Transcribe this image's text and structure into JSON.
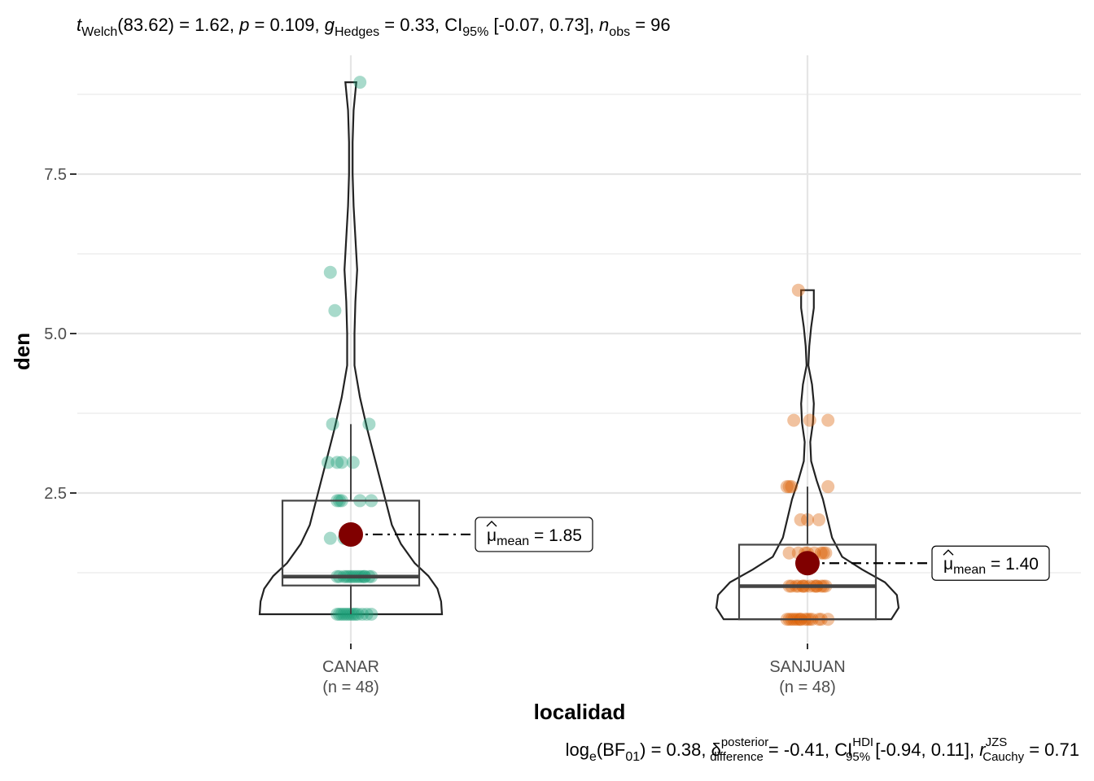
{
  "subtitle": {
    "t_symbol": "t",
    "t_sub": "Welch",
    "part1": "(83.62) = 1.62, ",
    "p_symbol": "p",
    "part2": " = 0.109, ",
    "g_symbol": "g",
    "g_sub": "Hedges",
    "part3": " = 0.33, CI",
    "ci_sub": "95%",
    "part4": " [-0.07, 0.73], ",
    "n_symbol": "n",
    "n_sub": "obs",
    "part5": " = 96"
  },
  "caption": {
    "part1": "log",
    "log_sub": "e",
    "part2": "(BF",
    "bf_sub": "01",
    "part3": ") = 0.38, δ",
    "delta_sup": "posterior",
    "delta_sub": "difference",
    "part4": " = -0.41, CI",
    "ci_sup": "HDI",
    "ci_sub": "95%",
    "part5": " [-0.94, 0.11], ",
    "r_symbol": "r",
    "r_sup": "JZS",
    "r_sub": "Cauchy",
    "part6": " = 0.71"
  },
  "chart_data": {
    "type": "violin-box-scatter",
    "xlabel": "localidad",
    "ylabel": "den",
    "ylim": [
      0.4,
      9.2
    ],
    "yticks": [
      2.5,
      5.0,
      7.5
    ],
    "ytick_labels": [
      "2.5",
      "5.0",
      "7.5"
    ],
    "grid": true,
    "groups": [
      {
        "name": "CANAR",
        "n_label": "(n = 48)",
        "color": "#1b9e77",
        "mean": 1.85,
        "mean_label_mu": "μ",
        "mean_label_sub": "mean",
        "mean_label_value": " = 1.85",
        "box": {
          "q1": 1.05,
          "median": 1.19,
          "q3": 2.38,
          "whisker_low": 0.6,
          "whisker_high": 3.58
        },
        "violin": [
          [
            0.6,
            1.0
          ],
          [
            0.8,
            0.99
          ],
          [
            1.0,
            0.95
          ],
          [
            1.2,
            0.85
          ],
          [
            1.4,
            0.7
          ],
          [
            1.7,
            0.55
          ],
          [
            2.0,
            0.45
          ],
          [
            2.5,
            0.36
          ],
          [
            3.0,
            0.27
          ],
          [
            3.5,
            0.18
          ],
          [
            4.0,
            0.1
          ],
          [
            4.5,
            0.04
          ],
          [
            5.0,
            0.04
          ],
          [
            5.5,
            0.05
          ],
          [
            6.0,
            0.07
          ],
          [
            6.5,
            0.05
          ],
          [
            7.0,
            0.03
          ],
          [
            7.5,
            0.02
          ],
          [
            8.0,
            0.02
          ],
          [
            8.5,
            0.03
          ],
          [
            8.94,
            0.06
          ]
        ],
        "points": [
          [
            -0.06,
            0.6
          ],
          [
            -0.05,
            0.6
          ],
          [
            -0.03,
            0.6
          ],
          [
            -0.02,
            0.6
          ],
          [
            -0.01,
            0.6
          ],
          [
            0.0,
            0.6
          ],
          [
            0.02,
            0.6
          ],
          [
            0.03,
            0.6
          ],
          [
            0.05,
            0.6
          ],
          [
            0.07,
            0.6
          ],
          [
            0.09,
            0.6
          ],
          [
            -0.06,
            1.19
          ],
          [
            -0.05,
            1.19
          ],
          [
            -0.03,
            1.19
          ],
          [
            -0.02,
            1.19
          ],
          [
            -0.01,
            1.19
          ],
          [
            0.0,
            1.19
          ],
          [
            0.01,
            1.19
          ],
          [
            0.02,
            1.19
          ],
          [
            0.04,
            1.19
          ],
          [
            0.05,
            1.19
          ],
          [
            0.06,
            1.19
          ],
          [
            0.08,
            1.19
          ],
          [
            0.09,
            1.19
          ],
          [
            -0.03,
            1.79
          ],
          [
            -0.02,
            1.79
          ],
          [
            -0.01,
            1.79
          ],
          [
            0.0,
            1.79
          ],
          [
            -0.09,
            1.79
          ],
          [
            -0.06,
            2.38
          ],
          [
            -0.05,
            2.38
          ],
          [
            -0.04,
            2.38
          ],
          [
            0.04,
            2.38
          ],
          [
            0.09,
            2.38
          ],
          [
            -0.1,
            2.98
          ],
          [
            -0.06,
            2.98
          ],
          [
            -0.04,
            2.98
          ],
          [
            0.01,
            2.98
          ],
          [
            -0.08,
            3.58
          ],
          [
            0.08,
            3.58
          ],
          [
            -0.09,
            5.96
          ],
          [
            -0.07,
            5.36
          ],
          [
            0.04,
            8.94
          ],
          [
            -0.02,
            1.79
          ],
          [
            0.03,
            1.19
          ],
          [
            -0.04,
            0.6
          ],
          [
            0.01,
            0.6
          ],
          [
            0.06,
            1.19
          ]
        ]
      },
      {
        "name": "SANJUAN",
        "n_label": "(n = 48)",
        "color": "#d95f02",
        "mean": 1.4,
        "mean_label_mu": "μ",
        "mean_label_sub": "mean",
        "mean_label_value": " = 1.40",
        "box": {
          "q1": 0.52,
          "median": 1.04,
          "q3": 1.69,
          "whisker_low": 0.52,
          "whisker_high": 2.6
        },
        "violin": [
          [
            0.52,
            0.92
          ],
          [
            0.7,
            1.0
          ],
          [
            0.9,
            0.98
          ],
          [
            1.1,
            0.85
          ],
          [
            1.3,
            0.6
          ],
          [
            1.5,
            0.38
          ],
          [
            1.8,
            0.27
          ],
          [
            2.1,
            0.22
          ],
          [
            2.4,
            0.17
          ],
          [
            2.7,
            0.1
          ],
          [
            3.0,
            0.04
          ],
          [
            3.3,
            0.03
          ],
          [
            3.6,
            0.06
          ],
          [
            3.9,
            0.07
          ],
          [
            4.2,
            0.05
          ],
          [
            4.5,
            0.01
          ],
          [
            4.8,
            0.02
          ],
          [
            5.1,
            0.04
          ],
          [
            5.4,
            0.07
          ],
          [
            5.68,
            0.07
          ]
        ],
        "points": [
          [
            -0.09,
            0.52
          ],
          [
            -0.08,
            0.52
          ],
          [
            -0.06,
            0.52
          ],
          [
            -0.05,
            0.52
          ],
          [
            -0.04,
            0.52
          ],
          [
            -0.03,
            0.52
          ],
          [
            -0.01,
            0.52
          ],
          [
            0.0,
            0.52
          ],
          [
            0.01,
            0.52
          ],
          [
            0.05,
            0.52
          ],
          [
            0.06,
            0.52
          ],
          [
            0.09,
            0.52
          ],
          [
            -0.08,
            1.04
          ],
          [
            -0.07,
            1.04
          ],
          [
            -0.05,
            1.04
          ],
          [
            -0.04,
            1.04
          ],
          [
            -0.02,
            1.04
          ],
          [
            -0.01,
            1.04
          ],
          [
            0.01,
            1.04
          ],
          [
            0.03,
            1.04
          ],
          [
            0.04,
            1.04
          ],
          [
            0.06,
            1.04
          ],
          [
            0.07,
            1.04
          ],
          [
            -0.08,
            1.56
          ],
          [
            -0.04,
            1.56
          ],
          [
            -0.01,
            1.56
          ],
          [
            0.03,
            1.56
          ],
          [
            0.07,
            1.56
          ],
          [
            0.08,
            1.56
          ],
          [
            -0.09,
            2.6
          ],
          [
            -0.08,
            2.6
          ],
          [
            -0.07,
            2.6
          ],
          [
            0.09,
            2.6
          ],
          [
            -0.03,
            2.08
          ],
          [
            0.0,
            2.08
          ],
          [
            0.05,
            2.08
          ],
          [
            -0.06,
            3.64
          ],
          [
            0.01,
            3.64
          ],
          [
            0.09,
            3.64
          ],
          [
            -0.04,
            5.68
          ],
          [
            -0.07,
            0.52
          ],
          [
            -0.02,
            1.04
          ],
          [
            0.02,
            0.52
          ],
          [
            0.04,
            1.04
          ],
          [
            -0.03,
            0.52
          ],
          [
            0.06,
            1.56
          ],
          [
            0.08,
            1.04
          ],
          [
            0.0,
            1.56
          ]
        ]
      }
    ]
  }
}
